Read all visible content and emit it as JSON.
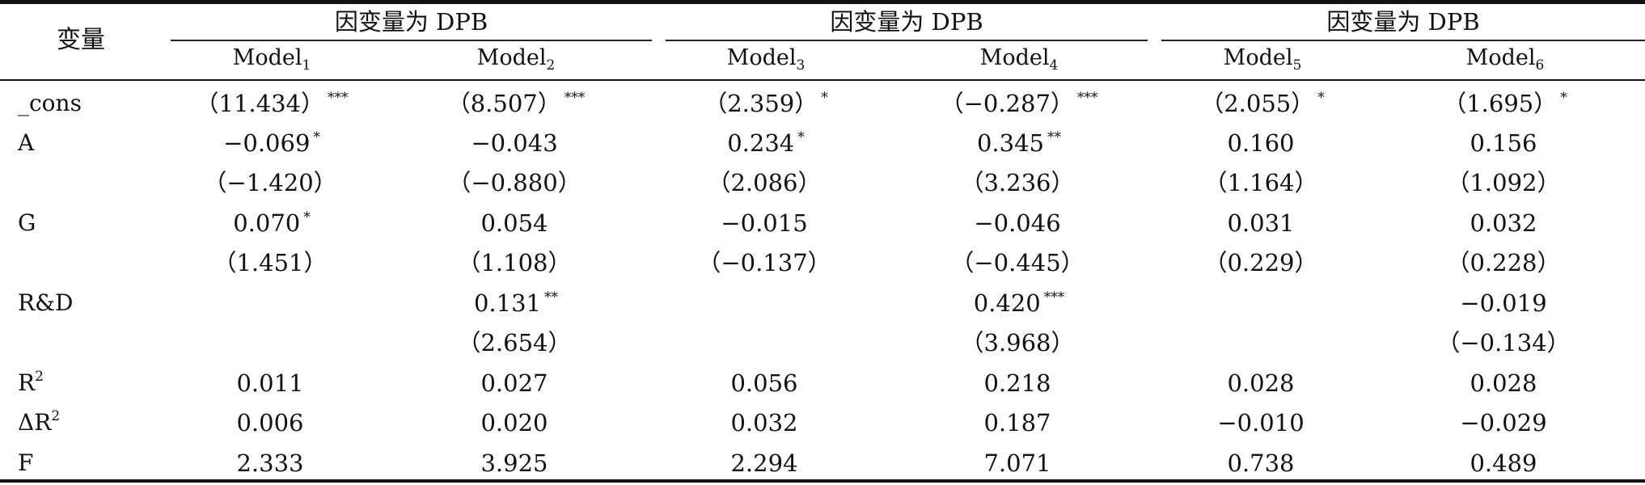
{
  "table": {
    "stub_header": "变量",
    "groups": [
      {
        "title": "因变量为 DPB"
      },
      {
        "title": "因变量为 DPB"
      },
      {
        "title": "因变量为 DPB"
      }
    ],
    "models": [
      {
        "name": "Model",
        "sub": "1"
      },
      {
        "name": "Model",
        "sub": "2"
      },
      {
        "name": "Model",
        "sub": "3"
      },
      {
        "name": "Model",
        "sub": "4"
      },
      {
        "name": "Model",
        "sub": "5"
      },
      {
        "name": "Model",
        "sub": "6"
      }
    ],
    "rows": [
      {
        "label": "_cons",
        "label_sup": "",
        "cells": [
          {
            "value": "（11.434）",
            "stars": "***"
          },
          {
            "value": "（8.507）",
            "stars": "***"
          },
          {
            "value": "（2.359）",
            "stars": "*"
          },
          {
            "value": "（−0.287）",
            "stars": "***"
          },
          {
            "value": "（2.055）",
            "stars": "*"
          },
          {
            "value": "（1.695）",
            "stars": "*"
          }
        ]
      },
      {
        "label": "A",
        "label_sup": "",
        "cells": [
          {
            "value": "−0.069",
            "stars": "*"
          },
          {
            "value": "−0.043",
            "stars": ""
          },
          {
            "value": "0.234",
            "stars": "*"
          },
          {
            "value": "0.345",
            "stars": "**"
          },
          {
            "value": "0.160",
            "stars": ""
          },
          {
            "value": "0.156",
            "stars": ""
          }
        ]
      },
      {
        "label": "",
        "label_sup": "",
        "cells": [
          {
            "value": "（−1.420）",
            "stars": ""
          },
          {
            "value": "（−0.880）",
            "stars": ""
          },
          {
            "value": "（2.086）",
            "stars": ""
          },
          {
            "value": "（3.236）",
            "stars": ""
          },
          {
            "value": "（1.164）",
            "stars": ""
          },
          {
            "value": "（1.092）",
            "stars": ""
          }
        ]
      },
      {
        "label": "G",
        "label_sup": "",
        "cells": [
          {
            "value": "0.070",
            "stars": "*"
          },
          {
            "value": "0.054",
            "stars": ""
          },
          {
            "value": "−0.015",
            "stars": ""
          },
          {
            "value": "−0.046",
            "stars": ""
          },
          {
            "value": "0.031",
            "stars": ""
          },
          {
            "value": "0.032",
            "stars": ""
          }
        ]
      },
      {
        "label": "",
        "label_sup": "",
        "cells": [
          {
            "value": "（1.451）",
            "stars": ""
          },
          {
            "value": "（1.108）",
            "stars": ""
          },
          {
            "value": "（−0.137）",
            "stars": ""
          },
          {
            "value": "（−0.445）",
            "stars": ""
          },
          {
            "value": "（0.229）",
            "stars": ""
          },
          {
            "value": "（0.228）",
            "stars": ""
          }
        ]
      },
      {
        "label": "R&D",
        "label_sup": "",
        "cells": [
          {
            "value": "",
            "stars": ""
          },
          {
            "value": "0.131",
            "stars": "**"
          },
          {
            "value": "",
            "stars": ""
          },
          {
            "value": "0.420",
            "stars": "***"
          },
          {
            "value": "",
            "stars": ""
          },
          {
            "value": "−0.019",
            "stars": ""
          }
        ]
      },
      {
        "label": "",
        "label_sup": "",
        "cells": [
          {
            "value": "",
            "stars": ""
          },
          {
            "value": "（2.654）",
            "stars": ""
          },
          {
            "value": "",
            "stars": ""
          },
          {
            "value": "（3.968）",
            "stars": ""
          },
          {
            "value": "",
            "stars": ""
          },
          {
            "value": "（−0.134）",
            "stars": ""
          }
        ]
      },
      {
        "label": "R",
        "label_sup": "2",
        "cells": [
          {
            "value": "0.011",
            "stars": ""
          },
          {
            "value": "0.027",
            "stars": ""
          },
          {
            "value": "0.056",
            "stars": ""
          },
          {
            "value": "0.218",
            "stars": ""
          },
          {
            "value": "0.028",
            "stars": ""
          },
          {
            "value": "0.028",
            "stars": ""
          }
        ]
      },
      {
        "label": "ΔR",
        "label_sup": "2",
        "cells": [
          {
            "value": "0.006",
            "stars": ""
          },
          {
            "value": "0.020",
            "stars": ""
          },
          {
            "value": "0.032",
            "stars": ""
          },
          {
            "value": "0.187",
            "stars": ""
          },
          {
            "value": "−0.010",
            "stars": ""
          },
          {
            "value": "−0.029",
            "stars": ""
          }
        ]
      },
      {
        "label": "F",
        "label_sup": "",
        "cells": [
          {
            "value": "2.333",
            "stars": ""
          },
          {
            "value": "3.925",
            "stars": ""
          },
          {
            "value": "2.294",
            "stars": ""
          },
          {
            "value": "7.071",
            "stars": ""
          },
          {
            "value": "0.738",
            "stars": ""
          },
          {
            "value": "0.489",
            "stars": ""
          }
        ]
      }
    ]
  }
}
